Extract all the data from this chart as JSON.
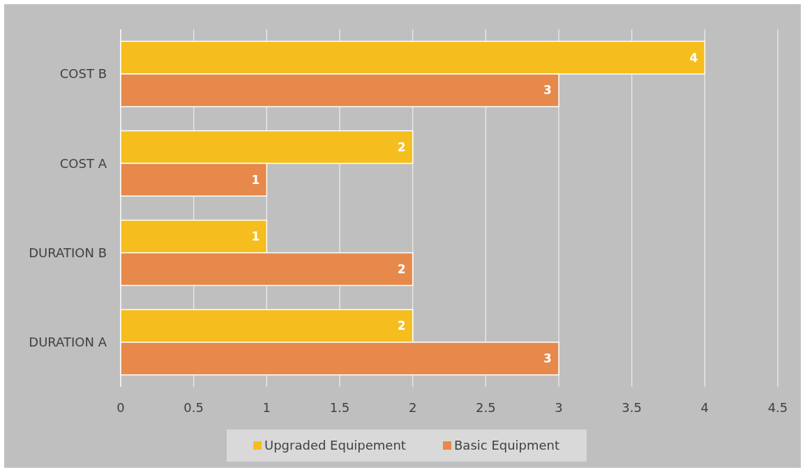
{
  "chart_data": {
    "type": "bar",
    "orientation": "horizontal",
    "categories": [
      "COST B",
      "COST A",
      "DURATION B",
      "DURATION A"
    ],
    "series": [
      {
        "name": "Upgraded Equipement",
        "color": "#f5be1e",
        "values": [
          4,
          2,
          1,
          2
        ]
      },
      {
        "name": "Basic Equipment",
        "color": "#e6894a",
        "values": [
          3,
          1,
          2,
          3
        ]
      }
    ],
    "xlim": [
      0,
      4.5
    ],
    "xticks": [
      0,
      0.5,
      1,
      1.5,
      2,
      2.5,
      3,
      3.5,
      4,
      4.5
    ],
    "grid": "x",
    "legend": "bottom",
    "data_labels": true
  }
}
